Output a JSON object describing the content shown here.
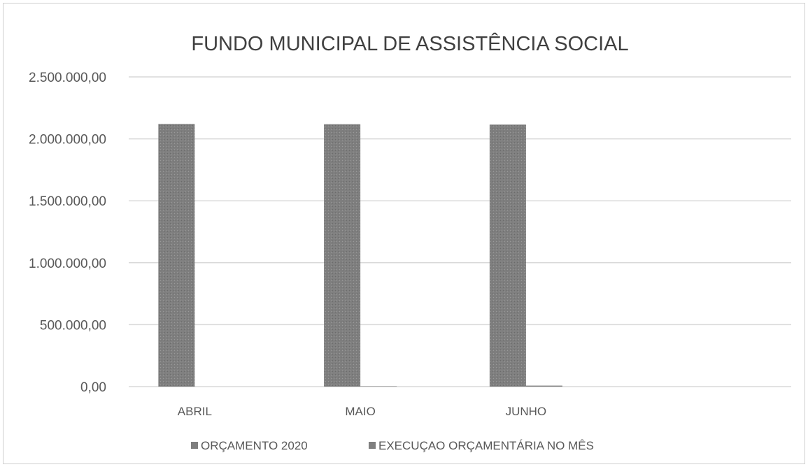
{
  "chart_data": {
    "type": "bar",
    "title": "FUNDO MUNICIPAL DE ASSISTÊNCIA SOCIAL",
    "categories": [
      "ABRIL",
      "MAIO",
      "JUNHO"
    ],
    "series": [
      {
        "name": "ORÇAMENTO 2020",
        "values": [
          2120000,
          2118000,
          2115000
        ],
        "color": "#7f7f7f"
      },
      {
        "name": "EXECUÇAO ORÇAMENTÁRIA NO MÊS",
        "values": [
          0,
          3000,
          8000
        ],
        "color": "#7f7f7f"
      }
    ],
    "y_ticks": [
      "0,00",
      "500.000,00",
      "1.000.000,00",
      "1.500.000,00",
      "2.000.000,00",
      "2.500.000,00"
    ],
    "ylim": [
      0,
      2500000
    ],
    "grid": true,
    "legend_position": "bottom",
    "colors": {
      "bar": "#7f7f7f",
      "grid": "#d9d9d9",
      "text": "#595959",
      "title": "#404040"
    }
  }
}
